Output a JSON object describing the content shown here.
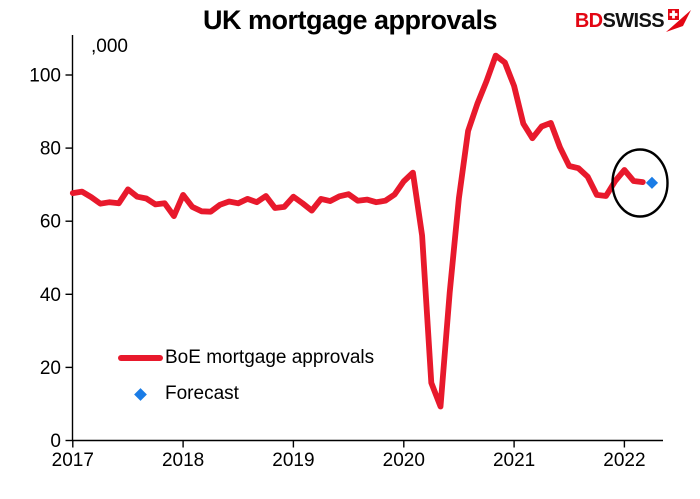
{
  "header": {
    "title": "UK mortgage approvals",
    "logo": {
      "part1": "BD",
      "part2": "SWISS",
      "part1_color": "#e30613",
      "part2_color": "#131313",
      "icon": "bdswiss-pennant-cross-icon",
      "icon_color": "#e30613"
    }
  },
  "chart_data": {
    "type": "line",
    "title": "UK mortgage approvals",
    "unit_label": ",000",
    "xlabel": "",
    "ylabel": ",000",
    "ylim": [
      0,
      110
    ],
    "grid": false,
    "x_tick_labels": [
      "2017",
      "2018",
      "2019",
      "2020",
      "2021",
      "2022"
    ],
    "y_tick_labels": [
      "0",
      "20",
      "40",
      "60",
      "80",
      "100"
    ],
    "y_tick_values": [
      0,
      20,
      40,
      60,
      80,
      100
    ],
    "series": [
      {
        "name": "BoE mortgage approvals",
        "color": "#e8192c",
        "frequency": "monthly",
        "start_month": "2017-01",
        "values": [
          67.7,
          68.1,
          66.6,
          64.8,
          65.2,
          64.9,
          68.7,
          66.7,
          66.2,
          64.6,
          64.9,
          61.4,
          67.2,
          63.9,
          62.7,
          62.6,
          64.5,
          65.4,
          64.9,
          66.1,
          65.2,
          66.9,
          63.6,
          63.9,
          66.7,
          64.9,
          62.9,
          66.1,
          65.5,
          66.8,
          67.4,
          65.6,
          65.9,
          65.2,
          65.6,
          67.3,
          70.9,
          73.3,
          56.1,
          15.8,
          9.3,
          40.5,
          66.3,
          84.7,
          92.1,
          98.3,
          105.3,
          103.4,
          97.0,
          86.7,
          82.7,
          85.9,
          86.9,
          80.2,
          75.1,
          74.5,
          72.2,
          67.2,
          66.9,
          71.0,
          74.0,
          71.0,
          70.7
        ]
      }
    ],
    "forecast_point": {
      "name": "Forecast",
      "color": "#1a7ce6",
      "marker": "diamond",
      "value": 70.5,
      "month_offset_from_start": 63
    },
    "annotation": {
      "type": "ellipse-highlight",
      "around": "latest actual value and forecast point"
    },
    "legend": {
      "position": "lower-left-inside",
      "entries": [
        {
          "label": "BoE mortgage approvals",
          "marker": "thick-line",
          "color": "#e8192c"
        },
        {
          "label": "Forecast",
          "marker": "diamond",
          "color": "#1a7ce6"
        }
      ]
    }
  }
}
